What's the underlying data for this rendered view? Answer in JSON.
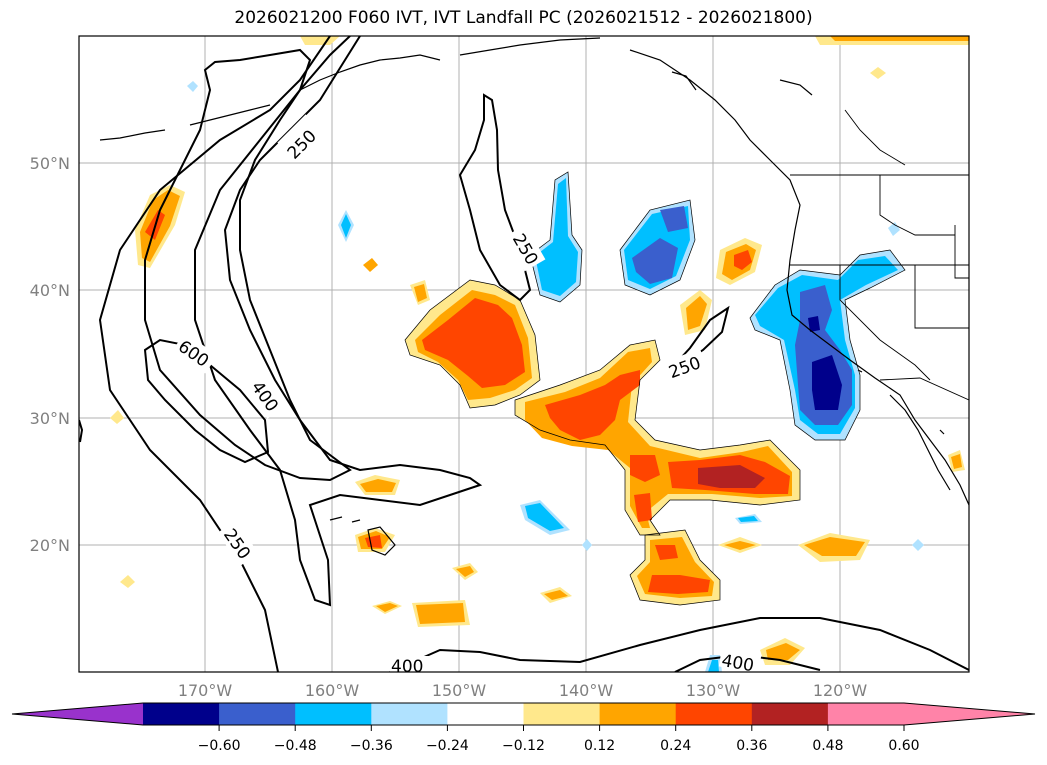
{
  "title": "2026021200 F060 IVT, IVT Landfall PC (2026021512 - 2026021800)",
  "map": {
    "lat_ticks": [
      {
        "value": 50,
        "label": "50°N"
      },
      {
        "value": 40,
        "label": "40°N"
      },
      {
        "value": 30,
        "label": "30°N"
      },
      {
        "value": 20,
        "label": "20°N"
      }
    ],
    "lon_ticks": [
      {
        "value": -170,
        "label": "170°W"
      },
      {
        "value": -160,
        "label": "160°W"
      },
      {
        "value": -150,
        "label": "150°W"
      },
      {
        "value": -140,
        "label": "140°W"
      },
      {
        "value": -130,
        "label": "130°W"
      },
      {
        "value": -120,
        "label": "120°W"
      }
    ],
    "contour_labels": [
      "250",
      "250",
      "250",
      "250",
      "400",
      "400",
      "400",
      "600"
    ],
    "colors": {
      "neg_060": "#9932cc",
      "neg_048": "#00008b",
      "neg_036": "#3a5fcd",
      "neg_024": "#00bfff",
      "neg_012": "#b0e2ff",
      "neutral": "#ffffff",
      "pos_012": "#ffe88c",
      "pos_024": "#ffa500",
      "pos_036": "#ff4500",
      "pos_048": "#b22222",
      "pos_060": "#ff83a8"
    }
  },
  "colorbar": {
    "colors": [
      "#b0e2ff",
      "#00bfff",
      "#3a5fcd",
      "#00008b",
      "#9932cc"
    ],
    "segments": [
      "#00008b",
      "#3a5fcd",
      "#00bfff",
      "#b0e2ff",
      "#ffffff",
      "#ffe88c",
      "#ffa500",
      "#ff4500",
      "#b22222",
      "#ff83a8"
    ],
    "under_color": "#9932cc",
    "over_color": "#ff83a8",
    "tick_labels": [
      "−0.60",
      "−0.48",
      "−0.36",
      "−0.24",
      "−0.12",
      "0.12",
      "0.24",
      "0.36",
      "0.48",
      "0.60"
    ]
  }
}
